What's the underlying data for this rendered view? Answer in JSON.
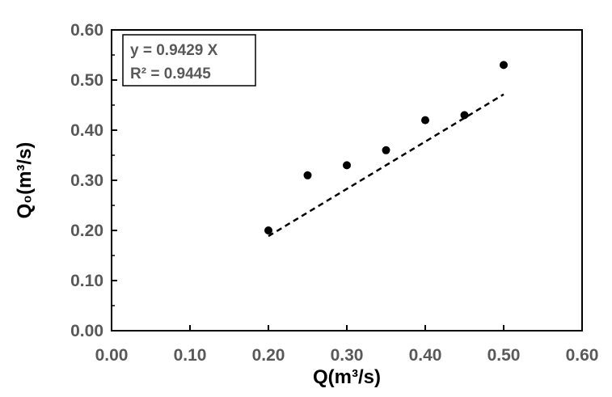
{
  "chart_data": {
    "type": "scatter",
    "title": "",
    "xlabel": "Q(m³/s)",
    "ylabel": "Q₀(m³/s)",
    "xlim": [
      0.0,
      0.6
    ],
    "ylim": [
      0.0,
      0.6
    ],
    "x_ticks": [
      "0.00",
      "0.10",
      "0.20",
      "0.30",
      "0.40",
      "0.50",
      "0.60"
    ],
    "y_ticks": [
      "0.00",
      "0.10",
      "0.20",
      "0.30",
      "0.40",
      "0.50",
      "0.60"
    ],
    "grid": false,
    "series": [
      {
        "points": [
          {
            "x": 0.2,
            "y": 0.2
          },
          {
            "x": 0.25,
            "y": 0.31
          },
          {
            "x": 0.3,
            "y": 0.33
          },
          {
            "x": 0.35,
            "y": 0.36
          },
          {
            "x": 0.4,
            "y": 0.42
          },
          {
            "x": 0.45,
            "y": 0.43
          },
          {
            "x": 0.5,
            "y": 0.53
          }
        ]
      }
    ],
    "trendline": {
      "slope": 0.9429,
      "x_range": [
        0.2,
        0.5
      ],
      "style": "dashed"
    },
    "annotation": {
      "line1": "y = 0.9429 X",
      "line2": "R²   = 0.9445",
      "placement": "top-left"
    },
    "colors": {
      "points": "#000000",
      "axes": "#000000",
      "tick_text": "#595959",
      "title_text": "#000000"
    }
  }
}
